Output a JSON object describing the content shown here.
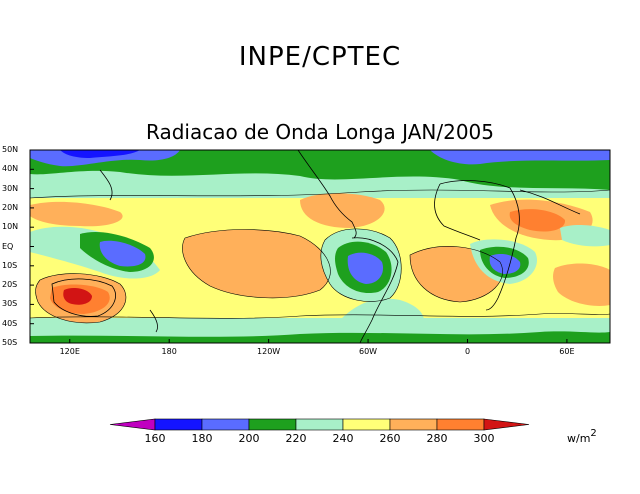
{
  "header": {
    "organization": "INPE/CPTEC",
    "title": "Radiacao de Onda Longa JAN/2005"
  },
  "map": {
    "lat_labels": [
      "50N",
      "40N",
      "30N",
      "20N",
      "10N",
      "EQ",
      "10S",
      "20S",
      "30S",
      "40S",
      "50S"
    ],
    "lon_labels": [
      "120E",
      "180",
      "120W",
      "60W",
      "0",
      "60E"
    ]
  },
  "colorbar": {
    "levels": [
      "160",
      "180",
      "200",
      "220",
      "240",
      "260",
      "280",
      "300"
    ],
    "colors": [
      "#c000c0",
      "#1414ff",
      "#5a6cff",
      "#1ea01e",
      "#a8f0c8",
      "#ffff78",
      "#ffb05a",
      "#ff8030",
      "#d21414"
    ],
    "units": "w/m",
    "units_exp": "2"
  }
}
